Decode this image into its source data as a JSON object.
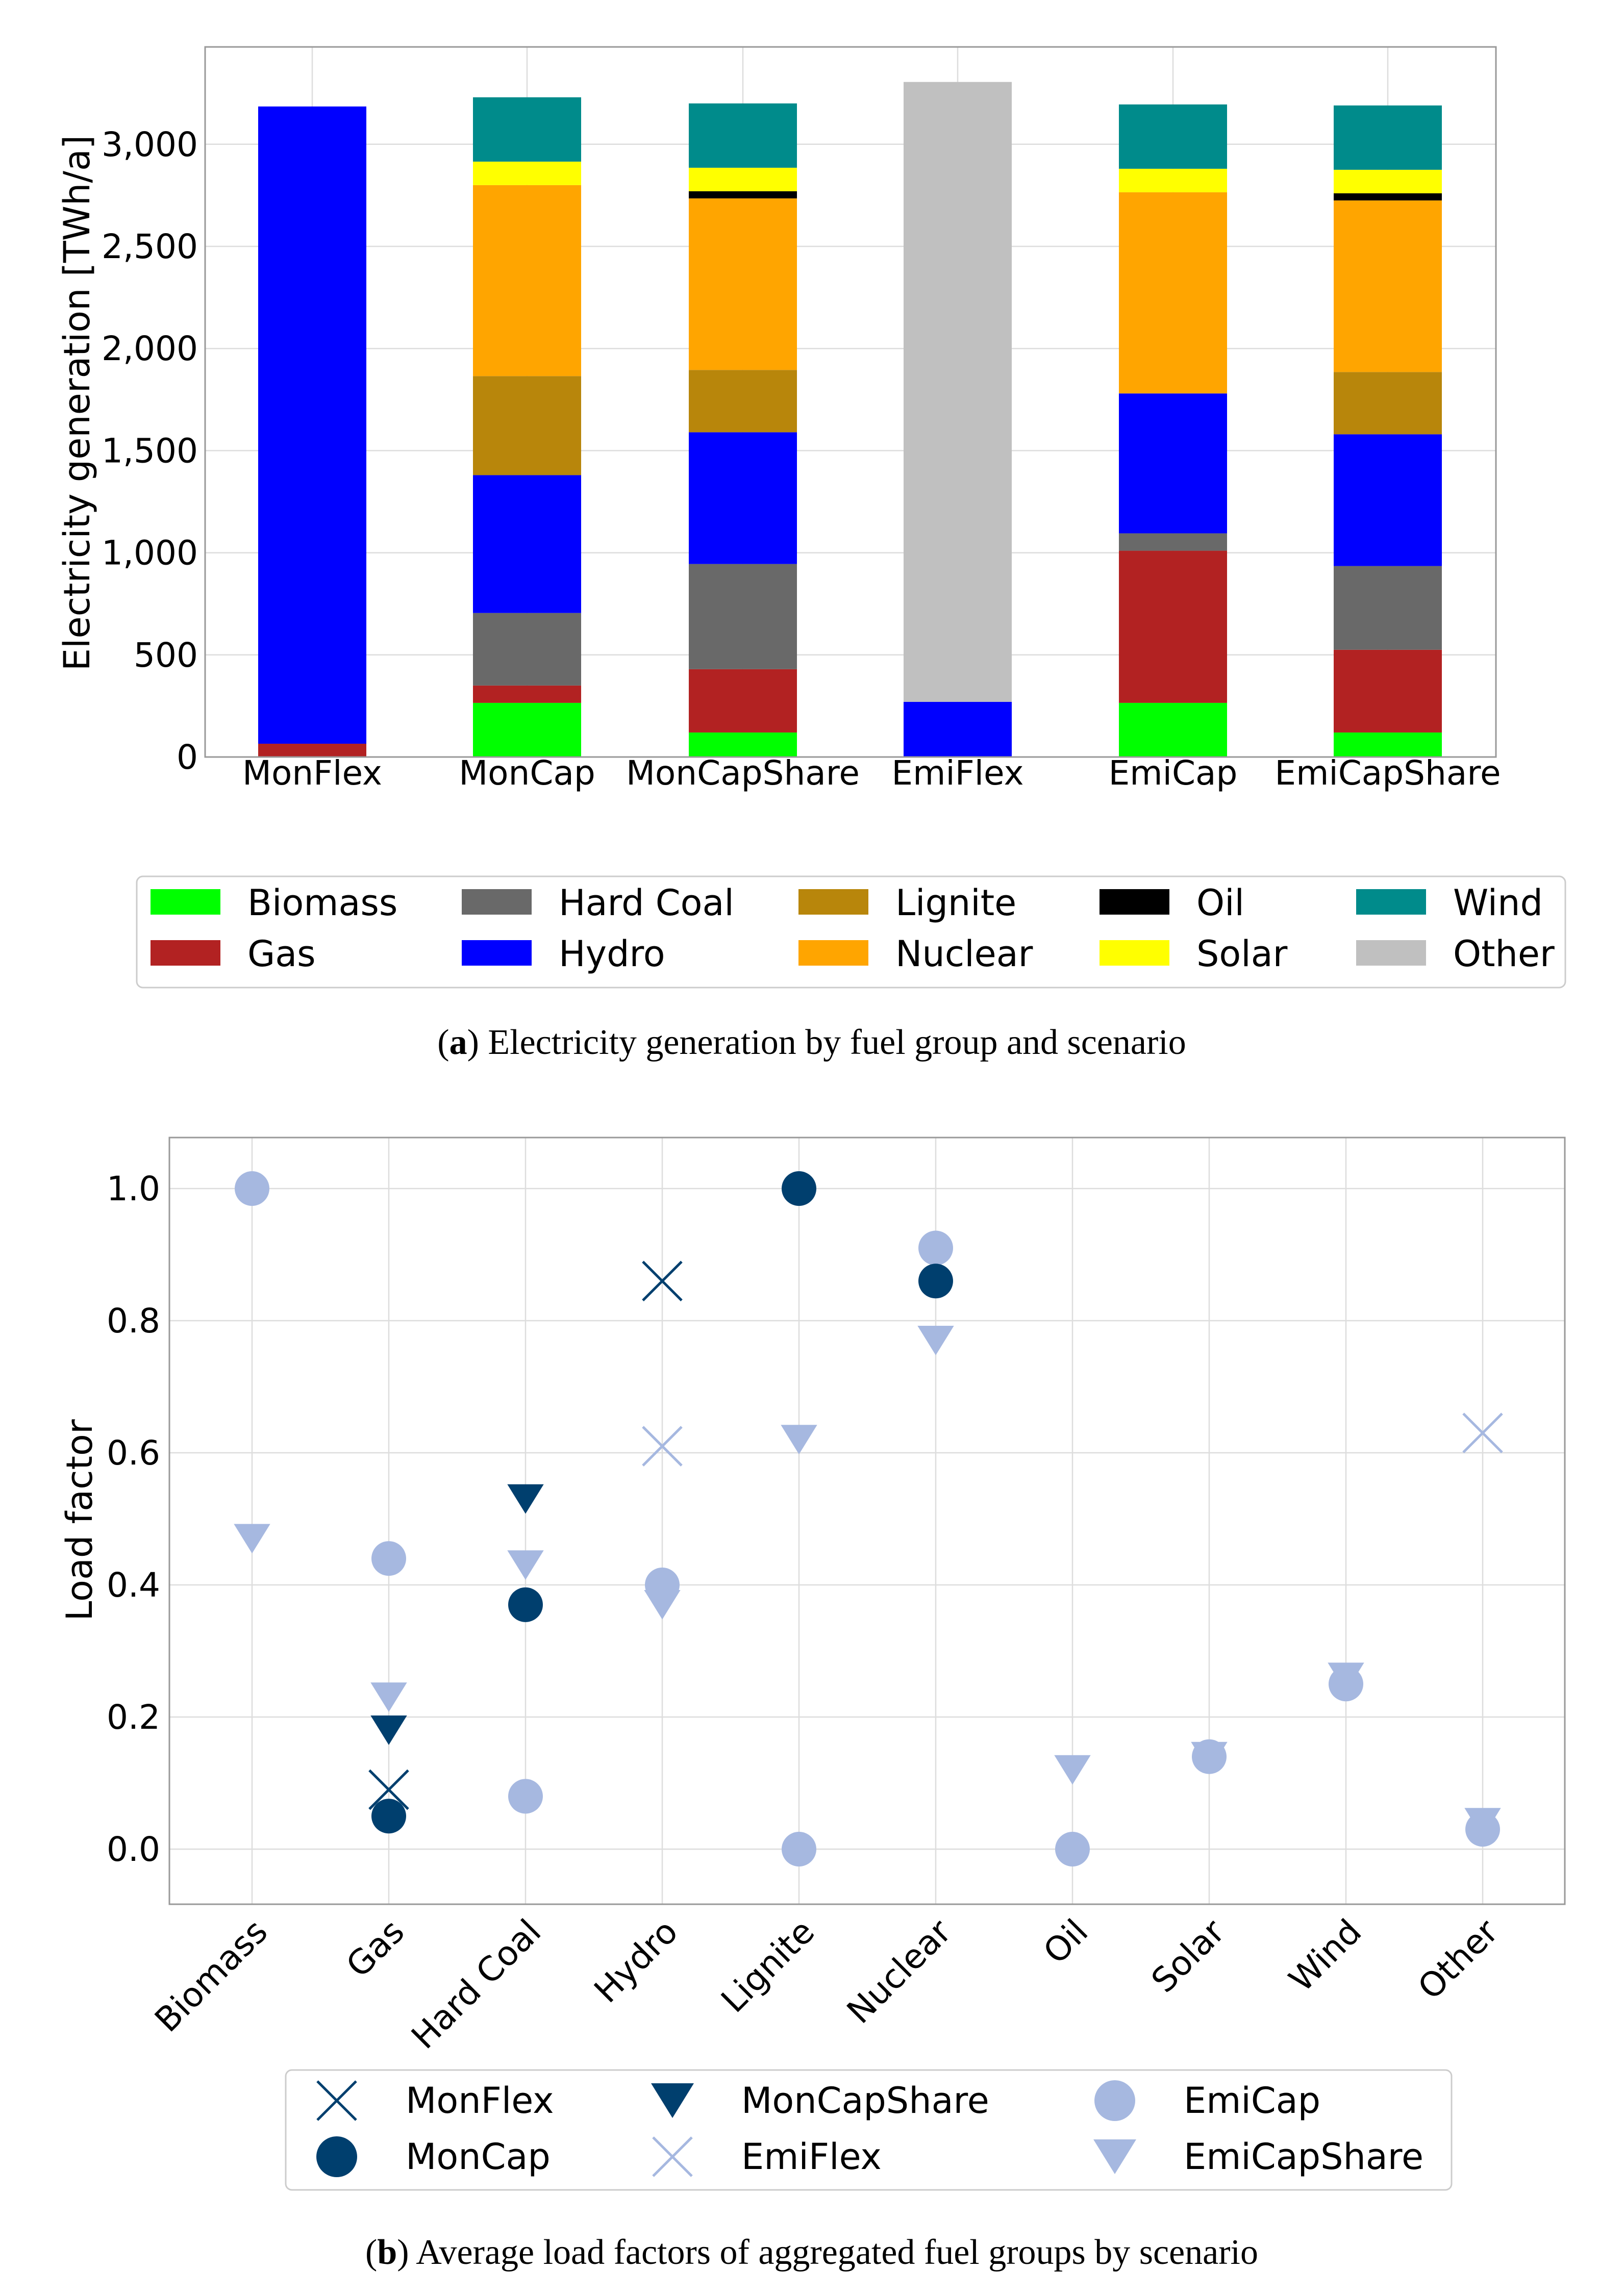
{
  "chart_data": [
    {
      "type": "bar",
      "stacked": true,
      "caption_label": "a",
      "caption_text": "Electricity generation by fuel group and scenario",
      "ylabel": "Electricity generation [TWh/a]",
      "xlabel": "",
      "ylim": [
        0,
        3400
      ],
      "yticks": [
        0,
        500,
        1000,
        1500,
        2000,
        2500,
        3000
      ],
      "ytick_labels": [
        "0",
        "500",
        "1,000",
        "1,500",
        "2,000",
        "2,500",
        "3,000"
      ],
      "grid": true,
      "legend_position": "bottom",
      "categories": [
        "MonFlex",
        "MonCap",
        "MonCapShare",
        "EmiFlex",
        "EmiCap",
        "EmiCapShare"
      ],
      "series": [
        {
          "name": "Biomass",
          "color": "#00ff00",
          "values": [
            0,
            265,
            120,
            0,
            265,
            120
          ]
        },
        {
          "name": "Gas",
          "color": "#b22222",
          "values": [
            65,
            85,
            310,
            0,
            745,
            405
          ]
        },
        {
          "name": "Hard Coal",
          "color": "#696969",
          "values": [
            0,
            355,
            515,
            0,
            85,
            410
          ]
        },
        {
          "name": "Hydro",
          "color": "#0000ff",
          "values": [
            3120,
            675,
            645,
            270,
            685,
            645
          ]
        },
        {
          "name": "Lignite",
          "color": "#b8860b",
          "values": [
            0,
            485,
            305,
            0,
            0,
            305
          ]
        },
        {
          "name": "Nuclear",
          "color": "#ffa500",
          "values": [
            0,
            935,
            840,
            0,
            985,
            840
          ]
        },
        {
          "name": "Oil",
          "color": "#000000",
          "values": [
            0,
            0,
            35,
            0,
            0,
            35
          ]
        },
        {
          "name": "Solar",
          "color": "#ffff00",
          "values": [
            0,
            115,
            115,
            0,
            115,
            115
          ]
        },
        {
          "name": "Wind",
          "color": "#008b8b",
          "values": [
            0,
            315,
            315,
            0,
            315,
            315
          ]
        },
        {
          "name": "Other",
          "color": "#c0c0c0",
          "values": [
            0,
            0,
            0,
            3035,
            0,
            0
          ]
        }
      ],
      "legend_order": [
        "Biomass",
        "Gas",
        "Hard Coal",
        "Hydro",
        "Lignite",
        "Nuclear",
        "Oil",
        "Solar",
        "Wind",
        "Other"
      ]
    },
    {
      "type": "scatter",
      "caption_label": "b",
      "caption_text": "Average load factors of aggregated fuel groups by scenario",
      "ylabel": "Load factor",
      "xlabel": "",
      "ylim": [
        -0.08,
        1.08
      ],
      "yticks": [
        0.0,
        0.2,
        0.4,
        0.6,
        0.8,
        1.0
      ],
      "ytick_labels": [
        "0.0",
        "0.2",
        "0.4",
        "0.6",
        "0.8",
        "1.0"
      ],
      "grid": true,
      "legend_position": "bottom",
      "categories": [
        "Biomass",
        "Gas",
        "Hard Coal",
        "Hydro",
        "Lignite",
        "Nuclear",
        "Oil",
        "Solar",
        "Wind",
        "Other"
      ],
      "series": [
        {
          "name": "MonFlex",
          "marker": "x",
          "color": "#003f6e",
          "points": [
            {
              "x": "Gas",
              "y": 0.09
            },
            {
              "x": "Hydro",
              "y": 0.86
            }
          ]
        },
        {
          "name": "MonCap",
          "marker": "circle",
          "color": "#003f6e",
          "points": [
            {
              "x": "Gas",
              "y": 0.05
            },
            {
              "x": "Hard Coal",
              "y": 0.37
            },
            {
              "x": "Lignite",
              "y": 1.0
            },
            {
              "x": "Nuclear",
              "y": 0.86
            }
          ]
        },
        {
          "name": "MonCapShare",
          "marker": "triangle",
          "color": "#003f6e",
          "points": [
            {
              "x": "Gas",
              "y": 0.18
            },
            {
              "x": "Hard Coal",
              "y": 0.53
            }
          ]
        },
        {
          "name": "EmiFlex",
          "marker": "x",
          "color": "#a6b8e0",
          "points": [
            {
              "x": "Hydro",
              "y": 0.61
            },
            {
              "x": "Other",
              "y": 0.63
            }
          ]
        },
        {
          "name": "EmiCap",
          "marker": "circle",
          "color": "#a6b8e0",
          "points": [
            {
              "x": "Biomass",
              "y": 1.0
            },
            {
              "x": "Gas",
              "y": 0.44
            },
            {
              "x": "Hard Coal",
              "y": 0.08
            },
            {
              "x": "Hydro",
              "y": 0.4
            },
            {
              "x": "Lignite",
              "y": 0.0
            },
            {
              "x": "Nuclear",
              "y": 0.91
            },
            {
              "x": "Oil",
              "y": 0.0
            },
            {
              "x": "Solar",
              "y": 0.14
            },
            {
              "x": "Wind",
              "y": 0.25
            },
            {
              "x": "Other",
              "y": 0.03
            }
          ]
        },
        {
          "name": "EmiCapShare",
          "marker": "triangle",
          "color": "#a6b8e0",
          "points": [
            {
              "x": "Biomass",
              "y": 0.47
            },
            {
              "x": "Gas",
              "y": 0.23
            },
            {
              "x": "Hard Coal",
              "y": 0.43
            },
            {
              "x": "Hydro",
              "y": 0.37
            },
            {
              "x": "Lignite",
              "y": 0.62
            },
            {
              "x": "Nuclear",
              "y": 0.77
            },
            {
              "x": "Oil",
              "y": 0.12
            },
            {
              "x": "Solar",
              "y": 0.14
            },
            {
              "x": "Wind",
              "y": 0.26
            },
            {
              "x": "Other",
              "y": 0.04
            }
          ]
        }
      ],
      "legend_order": [
        "MonFlex",
        "MonCap",
        "MonCapShare",
        "EmiFlex",
        "EmiCap",
        "EmiCapShare"
      ]
    }
  ]
}
